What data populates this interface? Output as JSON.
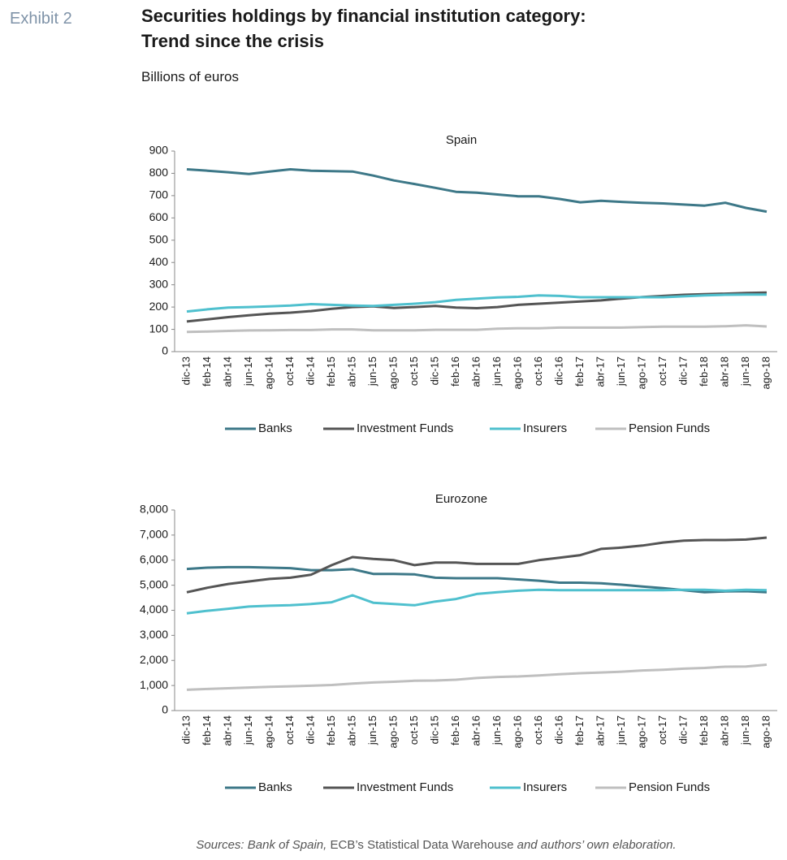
{
  "exhibit": "Exhibit 2",
  "title": [
    "Securities holdings by financial institution category:",
    "Trend since the crisis"
  ],
  "subtitle": "Billions of euros",
  "source": [
    "Sources: Bank of Spain,",
    "ECB’s Statistical Data Warehouse",
    "and authors’ own elaboration."
  ],
  "chart_data": [
    {
      "type": "line",
      "title": "Spain",
      "categories": [
        "dic-13",
        "feb-14",
        "abr-14",
        "jun-14",
        "ago-14",
        "oct-14",
        "dic-14",
        "feb-15",
        "abr-15",
        "jun-15",
        "ago-15",
        "oct-15",
        "dic-15",
        "feb-16",
        "abr-16",
        "jun-16",
        "ago-16",
        "oct-16",
        "dic-16",
        "feb-17",
        "abr-17",
        "jun-17",
        "ago-17",
        "oct-17",
        "dic-17",
        "feb-18",
        "abr-18",
        "jun-18",
        "ago-18"
      ],
      "series": [
        {
          "name": "Banks",
          "color": "#3d7888",
          "values": [
            818,
            812,
            805,
            797,
            808,
            818,
            812,
            810,
            808,
            790,
            768,
            752,
            735,
            717,
            713,
            705,
            697,
            697,
            685,
            670,
            677,
            672,
            668,
            665,
            660,
            655,
            668,
            645,
            628
          ]
        },
        {
          "name": "Investment Funds",
          "color": "#555555",
          "values": [
            135,
            145,
            155,
            163,
            170,
            175,
            182,
            192,
            200,
            203,
            196,
            200,
            205,
            198,
            195,
            200,
            210,
            215,
            220,
            225,
            230,
            238,
            245,
            250,
            255,
            258,
            260,
            263,
            265
          ]
        },
        {
          "name": "Insurers",
          "color": "#4fc0ce",
          "values": [
            180,
            190,
            198,
            200,
            203,
            207,
            213,
            210,
            207,
            205,
            210,
            215,
            222,
            232,
            238,
            243,
            246,
            252,
            250,
            244,
            244,
            244,
            244,
            244,
            248,
            252,
            255,
            256,
            256
          ]
        },
        {
          "name": "Pension Funds",
          "color": "#bfbfbf",
          "values": [
            88,
            90,
            93,
            95,
            96,
            97,
            97,
            100,
            100,
            96,
            96,
            96,
            98,
            98,
            98,
            103,
            105,
            105,
            108,
            108,
            108,
            108,
            110,
            112,
            112,
            112,
            114,
            118,
            113
          ]
        }
      ],
      "ylim": [
        0,
        900
      ],
      "yticks": [
        0,
        100,
        200,
        300,
        400,
        500,
        600,
        700,
        800,
        900
      ],
      "grid": false,
      "legend": "bottom"
    },
    {
      "type": "line",
      "title": "Eurozone",
      "categories": [
        "dic-13",
        "feb-14",
        "abr-14",
        "jun-14",
        "ago-14",
        "oct-14",
        "dic-14",
        "feb-15",
        "abr-15",
        "jun-15",
        "ago-15",
        "oct-15",
        "dic-15",
        "feb-16",
        "abr-16",
        "jun-16",
        "ago-16",
        "oct-16",
        "dic-16",
        "feb-17",
        "abr-17",
        "jun-17",
        "ago-17",
        "oct-17",
        "dic-17",
        "feb-18",
        "abr-18",
        "jun-18",
        "ago-18"
      ],
      "series": [
        {
          "name": "Banks",
          "color": "#3d7888",
          "values": [
            5650,
            5700,
            5720,
            5720,
            5700,
            5680,
            5600,
            5600,
            5640,
            5450,
            5450,
            5430,
            5300,
            5280,
            5280,
            5280,
            5230,
            5180,
            5100,
            5100,
            5080,
            5020,
            4950,
            4880,
            4800,
            4720,
            4750,
            4760,
            4720
          ]
        },
        {
          "name": "Investment Funds",
          "color": "#555555",
          "values": [
            4720,
            4900,
            5050,
            5150,
            5250,
            5300,
            5420,
            5800,
            6120,
            6050,
            6000,
            5800,
            5900,
            5900,
            5850,
            5850,
            5850,
            6000,
            6100,
            6200,
            6450,
            6500,
            6580,
            6700,
            6780,
            6800,
            6800,
            6820,
            6900
          ]
        },
        {
          "name": "Insurers",
          "color": "#4fc0ce",
          "values": [
            3880,
            3980,
            4060,
            4150,
            4180,
            4200,
            4250,
            4320,
            4600,
            4300,
            4250,
            4200,
            4350,
            4450,
            4650,
            4720,
            4780,
            4820,
            4800,
            4800,
            4800,
            4800,
            4800,
            4800,
            4820,
            4820,
            4780,
            4820,
            4800
          ]
        },
        {
          "name": "Pension Funds",
          "color": "#bfbfbf",
          "values": [
            830,
            860,
            890,
            920,
            950,
            970,
            990,
            1020,
            1080,
            1120,
            1150,
            1190,
            1200,
            1230,
            1300,
            1340,
            1360,
            1400,
            1450,
            1490,
            1520,
            1550,
            1600,
            1630,
            1670,
            1700,
            1750,
            1760,
            1830
          ]
        }
      ],
      "ylim": [
        0,
        8000
      ],
      "yticks": [
        0,
        {
          "value": 1000,
          "label": "1,000"
        },
        {
          "value": 2000,
          "label": "2,000"
        },
        {
          "value": 3000,
          "label": "3,000"
        },
        {
          "value": 4000,
          "label": "4,000"
        },
        {
          "value": 5000,
          "label": "5,000"
        },
        {
          "value": 6000,
          "label": "6,000"
        },
        {
          "value": 7000,
          "label": "7,000"
        },
        {
          "value": 8000,
          "label": "8,000"
        }
      ],
      "grid": false,
      "legend": "bottom"
    }
  ]
}
